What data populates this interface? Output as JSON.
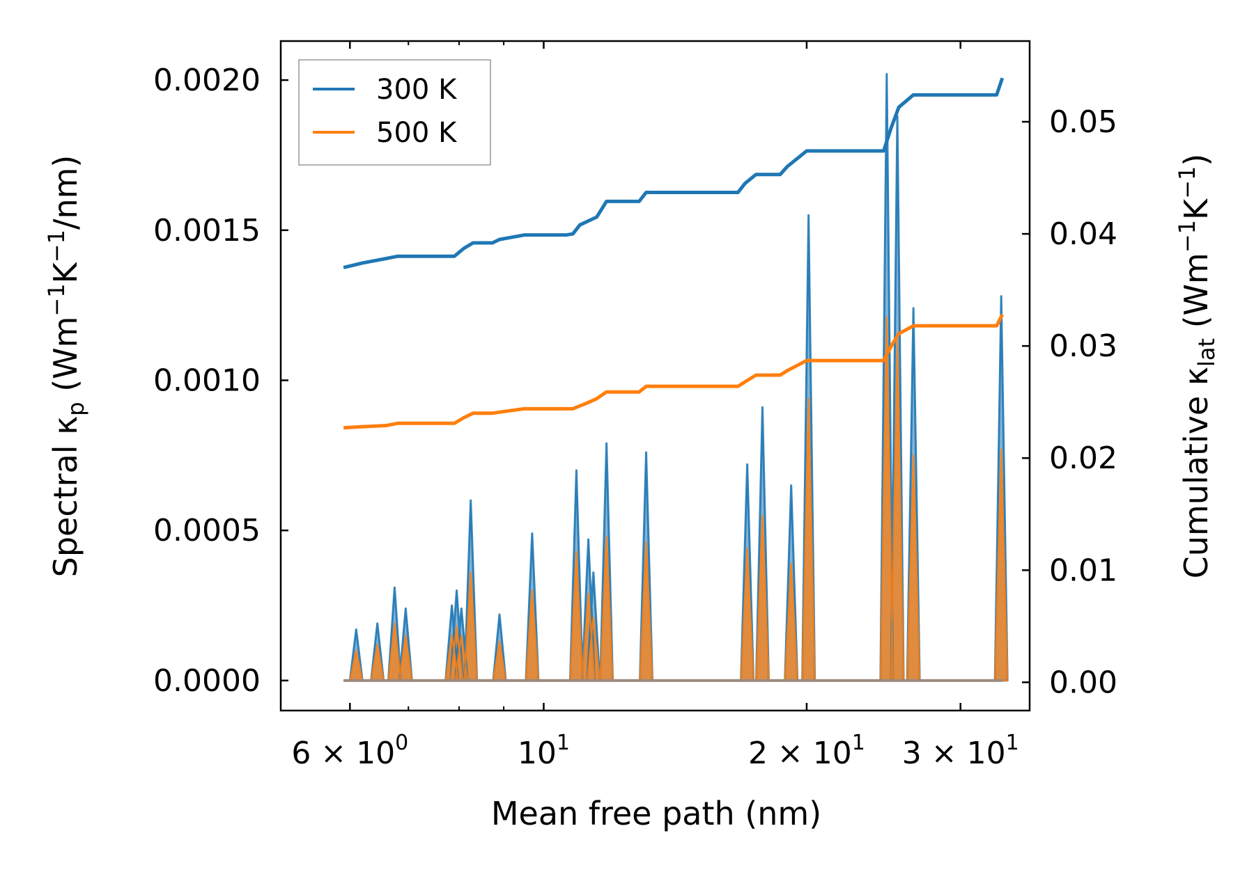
{
  "chart_data": {
    "type": "line",
    "title": "",
    "xlabel": "Mean free path (nm)",
    "xscale": "log",
    "xlim": [
      5.0,
      36.0
    ],
    "ylabel_left": {
      "main": "Spectral κ",
      "sub": "p",
      "units_open": " (Wm",
      "exp1": "−1",
      "mid": "K",
      "exp2": "−1",
      "units_close": "/nm)"
    },
    "ylabel_right": {
      "main": "Cumulative κ",
      "sub": "lat",
      "units_open": " (Wm",
      "exp1": "−1",
      "mid": "K",
      "exp2": "−1",
      "units_close": ")"
    },
    "ylim_left": [
      -0.0001,
      0.00213
    ],
    "ylim_right": [
      -0.00252,
      0.0572
    ],
    "x_ticks": [
      {
        "value": 6,
        "mant": "6 × 10",
        "exp": "0"
      },
      {
        "value": 10,
        "mant": "10",
        "exp": "1"
      },
      {
        "value": 20,
        "mant": "2 × 10",
        "exp": "1"
      },
      {
        "value": 30,
        "mant": "3 × 10",
        "exp": "1"
      }
    ],
    "y_ticks_left": [
      "0.0000",
      "0.0005",
      "0.0010",
      "0.0015",
      "0.0020"
    ],
    "y_ticks_left_values": [
      0,
      0.0005,
      0.001,
      0.0015,
      0.002
    ],
    "y_ticks_right": [
      "0.00",
      "0.01",
      "0.02",
      "0.03",
      "0.04",
      "0.05"
    ],
    "y_ticks_right_values": [
      0,
      0.01,
      0.02,
      0.03,
      0.04,
      0.05
    ],
    "legend_position": "top-left",
    "series": [
      {
        "name": "300 K",
        "color": "#1f77b4",
        "cumulative": [
          [
            5.9,
            0.037
          ],
          [
            6.05,
            0.0372
          ],
          [
            6.2,
            0.0374
          ],
          [
            6.4,
            0.0376
          ],
          [
            6.6,
            0.0378
          ],
          [
            6.8,
            0.038
          ],
          [
            7.9,
            0.038
          ],
          [
            8.1,
            0.0387
          ],
          [
            8.3,
            0.0392
          ],
          [
            8.9,
            0.0395
          ],
          [
            9.5,
            0.0399
          ],
          [
            10.8,
            0.04
          ],
          [
            11.0,
            0.0408
          ],
          [
            11.5,
            0.0415
          ],
          [
            11.8,
            0.0429
          ],
          [
            13.1,
            0.0437
          ],
          [
            17.0,
            0.0445
          ],
          [
            17.5,
            0.0453
          ],
          [
            19.0,
            0.046
          ],
          [
            20.0,
            0.0474
          ],
          [
            24.5,
            0.0474
          ],
          [
            25.0,
            0.0495
          ],
          [
            25.5,
            0.0513
          ],
          [
            26.5,
            0.0524
          ],
          [
            33.0,
            0.0524
          ],
          [
            33.5,
            0.0539
          ]
        ],
        "spectral_peaks": [
          [
            6.1,
            0.00017
          ],
          [
            6.45,
            0.00019
          ],
          [
            6.75,
            0.00031
          ],
          [
            6.95,
            0.00024
          ],
          [
            7.85,
            0.00025
          ],
          [
            7.95,
            0.0003
          ],
          [
            8.05,
            0.00024
          ],
          [
            8.25,
            0.0006
          ],
          [
            8.9,
            0.00022
          ],
          [
            9.7,
            0.00049
          ],
          [
            10.9,
            0.0007
          ],
          [
            11.25,
            0.00047
          ],
          [
            11.4,
            0.00036
          ],
          [
            11.8,
            0.00079
          ],
          [
            13.1,
            0.00076
          ],
          [
            17.1,
            0.00072
          ],
          [
            17.8,
            0.00091
          ],
          [
            19.2,
            0.00065
          ],
          [
            20.1,
            0.00155
          ],
          [
            24.7,
            0.00202
          ],
          [
            25.4,
            0.00188
          ],
          [
            26.5,
            0.00124
          ],
          [
            33.4,
            0.00128
          ]
        ]
      },
      {
        "name": "500 K",
        "color": "#ff7f0e",
        "cumulative": [
          [
            5.9,
            0.0227
          ],
          [
            6.2,
            0.0228
          ],
          [
            6.6,
            0.0229
          ],
          [
            6.8,
            0.0231
          ],
          [
            7.9,
            0.0231
          ],
          [
            8.1,
            0.0236
          ],
          [
            8.3,
            0.024
          ],
          [
            8.9,
            0.0241
          ],
          [
            9.5,
            0.0244
          ],
          [
            10.8,
            0.0244
          ],
          [
            11.2,
            0.0249
          ],
          [
            11.5,
            0.0253
          ],
          [
            11.8,
            0.0259
          ],
          [
            13.1,
            0.0264
          ],
          [
            17.0,
            0.0268
          ],
          [
            17.5,
            0.0274
          ],
          [
            19.0,
            0.0278
          ],
          [
            20.0,
            0.0287
          ],
          [
            24.5,
            0.0287
          ],
          [
            25.0,
            0.03
          ],
          [
            25.5,
            0.0311
          ],
          [
            26.5,
            0.0318
          ],
          [
            33.0,
            0.0318
          ],
          [
            33.5,
            0.0328
          ]
        ],
        "spectral_peaks": [
          [
            6.1,
            0.0001
          ],
          [
            6.45,
            0.00012
          ],
          [
            6.75,
            0.00019
          ],
          [
            6.95,
            0.00015
          ],
          [
            7.85,
            0.00015
          ],
          [
            7.95,
            0.00018
          ],
          [
            8.05,
            0.00015
          ],
          [
            8.25,
            0.00036
          ],
          [
            8.9,
            0.00013
          ],
          [
            9.7,
            0.0003
          ],
          [
            10.9,
            0.00043
          ],
          [
            11.25,
            0.00029
          ],
          [
            11.4,
            0.00021
          ],
          [
            11.8,
            0.00048
          ],
          [
            13.1,
            0.00046
          ],
          [
            17.1,
            0.00044
          ],
          [
            17.8,
            0.00055
          ],
          [
            19.2,
            0.00039
          ],
          [
            20.1,
            0.00094
          ],
          [
            24.7,
            0.00121
          ],
          [
            25.4,
            0.00113
          ],
          [
            26.5,
            0.00075
          ],
          [
            33.4,
            0.00077
          ]
        ]
      }
    ]
  }
}
